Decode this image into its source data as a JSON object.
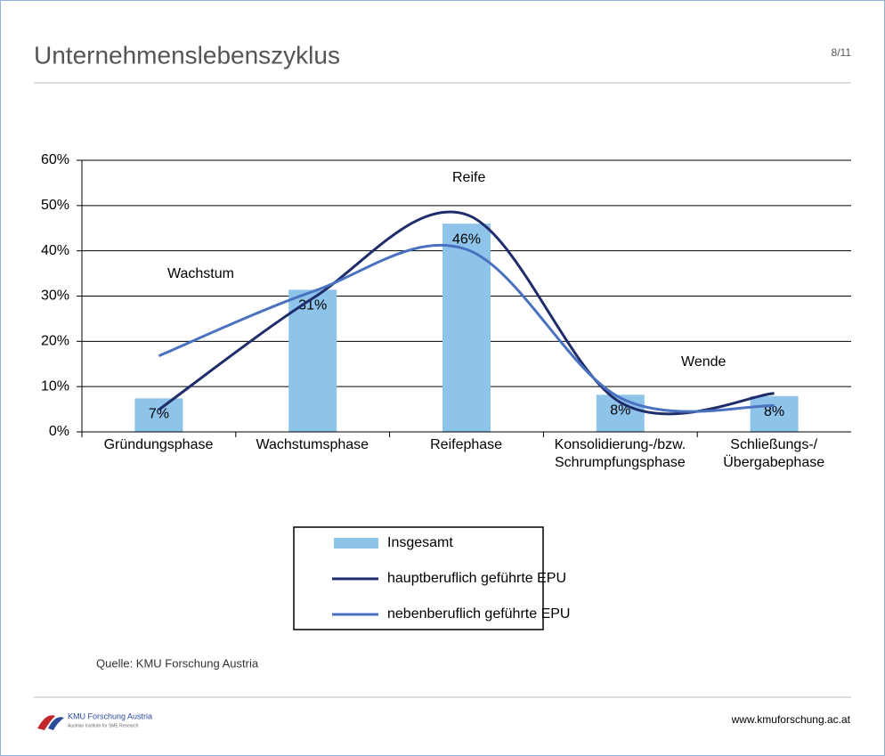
{
  "header": {
    "title": "Unternehmenslebenszyklus",
    "page": "8/11"
  },
  "chart_data": {
    "type": "bar",
    "categories": [
      "Gründungsphase",
      "Wachstumsphase",
      "Reifephase",
      "Konsolidierung-/bzw. Schrumpfungsphase",
      "Schließungs-/ Übergabephase"
    ],
    "series": [
      {
        "name": "Insgesamt",
        "type": "bar",
        "color": "#8ec4ea",
        "values": [
          7.4,
          31.4,
          46,
          8.2,
          7.9
        ],
        "value_labels": [
          "7%",
          "31%",
          "46%",
          "8%",
          "8%"
        ]
      },
      {
        "name": "hauptberuflich geführte EPU",
        "type": "line",
        "color": "#1f2d6b",
        "values": [
          4.9,
          29.5,
          48,
          6.5,
          8.5
        ]
      },
      {
        "name": "nebenberuflich geführte EPU",
        "type": "line",
        "color": "#4a72c0",
        "values": [
          16.8,
          31,
          40.3,
          7.5,
          5.8
        ]
      }
    ],
    "annotations": [
      "Reife",
      "Wachstum",
      "Wende"
    ],
    "ylim": [
      0,
      60
    ],
    "yticks": [
      {
        "value": 0,
        "label": "0%"
      },
      {
        "value": 10,
        "label": "10%"
      },
      {
        "value": 20,
        "label": "20%"
      },
      {
        "value": 30,
        "label": "30%"
      },
      {
        "value": 40,
        "label": "40%"
      },
      {
        "value": 50,
        "label": "50%"
      },
      {
        "value": 60,
        "label": "60%"
      }
    ],
    "grid": true,
    "legend": "bottom"
  },
  "source": "Quelle: KMU Forschung Austria",
  "footer": {
    "logo_name": "KMU Forschung Austria",
    "logo_sub": "Austrian Institute for SME Research",
    "url": "www.kmuforschung.ac.at"
  }
}
